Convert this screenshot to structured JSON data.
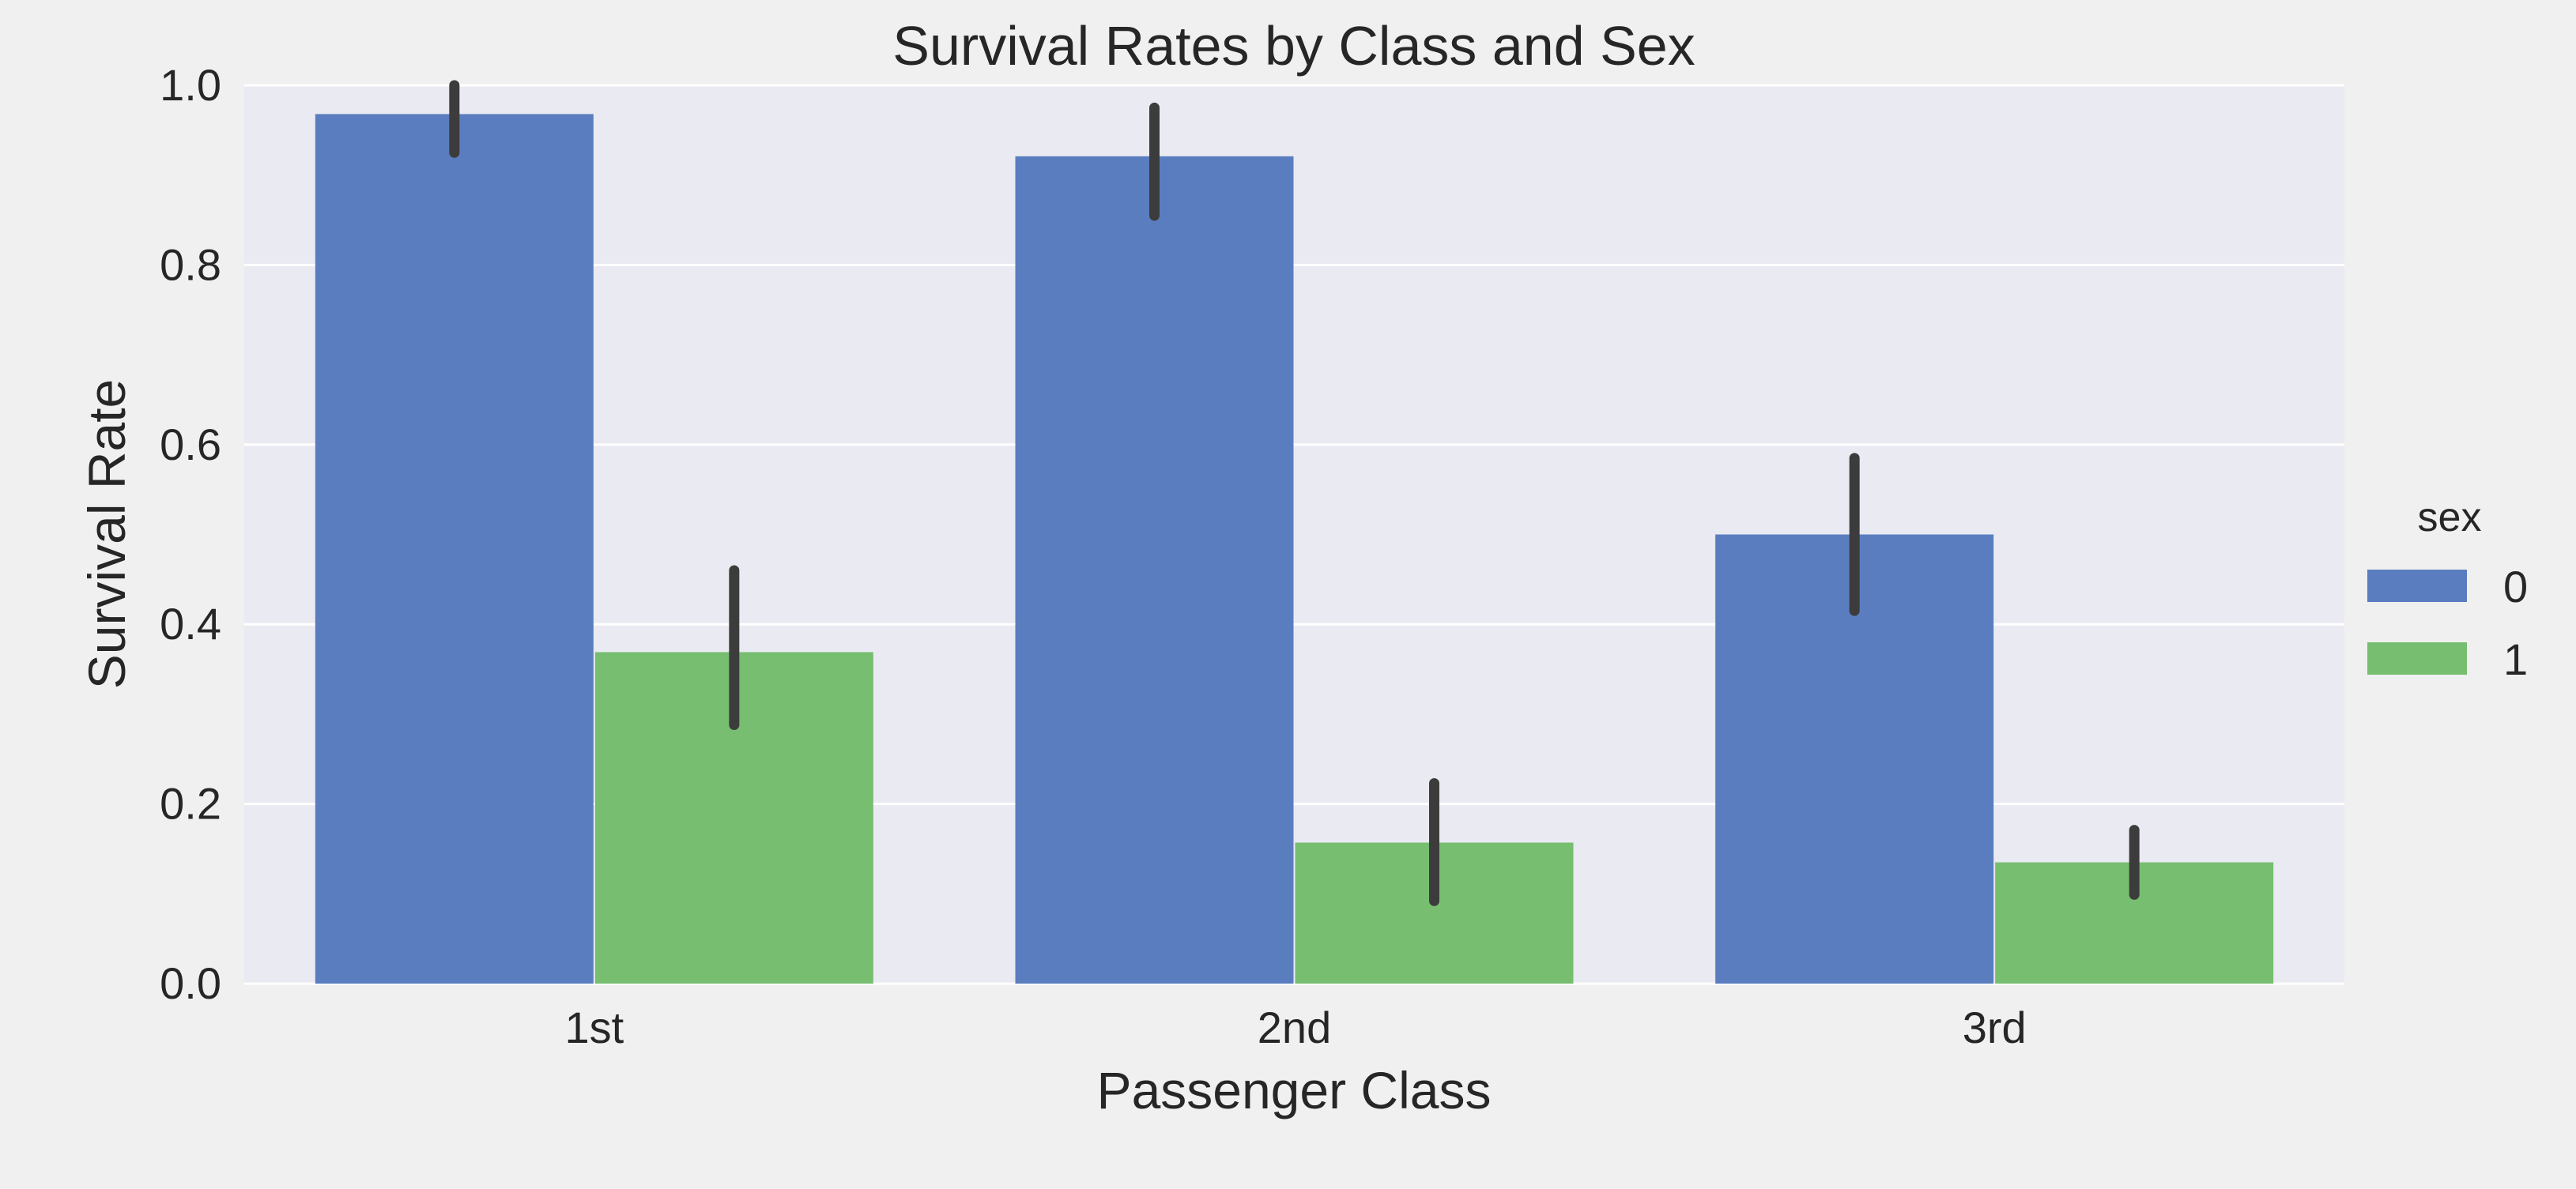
{
  "chart_data": {
    "type": "bar",
    "title": "Survival Rates by Class and Sex",
    "xlabel": "Passenger Class",
    "ylabel": "Survival Rate",
    "categories": [
      "1st",
      "2nd",
      "3rd"
    ],
    "ylim": [
      0,
      1.0
    ],
    "yticks": [
      "0.0",
      "0.2",
      "0.4",
      "0.6",
      "0.8",
      "1.0"
    ],
    "grid": true,
    "legend": {
      "title": "sex",
      "placement": "right"
    },
    "series": [
      {
        "name": "0",
        "color": "#5a7dbf",
        "values": [
          0.968,
          0.921,
          0.5
        ],
        "ci": [
          [
            0.925,
            1.0
          ],
          [
            0.855,
            0.975
          ],
          [
            0.415,
            0.585
          ]
        ]
      },
      {
        "name": "1",
        "color": "#77be70",
        "values": [
          0.369,
          0.157,
          0.135
        ],
        "ci": [
          [
            0.288,
            0.46
          ],
          [
            0.092,
            0.223
          ],
          [
            0.099,
            0.171
          ]
        ]
      }
    ],
    "error_bar_color": "#3c3c3c"
  }
}
